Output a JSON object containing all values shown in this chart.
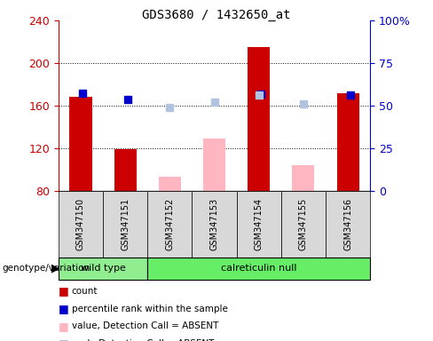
{
  "title": "GDS3680 / 1432650_at",
  "samples": [
    "GSM347150",
    "GSM347151",
    "GSM347152",
    "GSM347153",
    "GSM347154",
    "GSM347155",
    "GSM347156"
  ],
  "count_values": [
    168,
    119,
    null,
    null,
    215,
    null,
    172
  ],
  "count_color": "#cc0000",
  "percentile_rank": [
    172,
    166,
    null,
    null,
    171,
    null,
    170
  ],
  "percentile_rank_color": "#0000cc",
  "absent_value": [
    null,
    null,
    93,
    129,
    null,
    104,
    null
  ],
  "absent_value_color": "#FFB6C1",
  "absent_rank": [
    null,
    null,
    158,
    163,
    170,
    162,
    null
  ],
  "absent_rank_color": "#b0c4e0",
  "ylim_left": [
    80,
    240
  ],
  "ylim_right": [
    0,
    100
  ],
  "yticks_left": [
    80,
    120,
    160,
    200,
    240
  ],
  "yticks_right": [
    0,
    25,
    50,
    75,
    100
  ],
  "left_axis_color": "#cc0000",
  "right_axis_color": "#0000cc",
  "bar_width": 0.5,
  "marker_size": 6,
  "wt_color": "#90EE90",
  "cn_color": "#66EE66",
  "sample_bg_color": "#d8d8d8",
  "plot_bg_color": "#ffffff"
}
